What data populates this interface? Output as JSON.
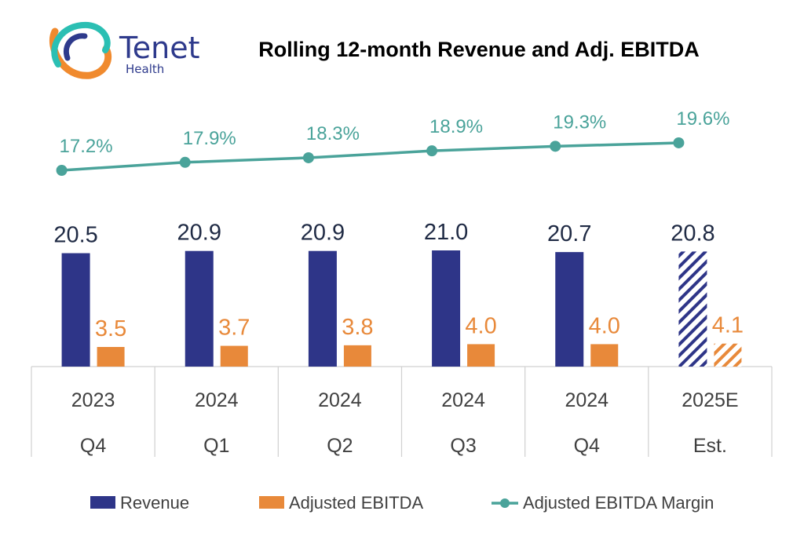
{
  "brand": {
    "name": "Tenet",
    "sub": "Health",
    "colors": {
      "teal": "#2bbfb3",
      "navy": "#2e3a8c",
      "orange": "#f08a2e"
    }
  },
  "chart_data": {
    "type": "bar",
    "title": "Rolling 12-month Revenue and Adj. EBITDA",
    "categories": [
      {
        "year": "2023",
        "period": "Q4"
      },
      {
        "year": "2024",
        "period": "Q1"
      },
      {
        "year": "2024",
        "period": "Q2"
      },
      {
        "year": "2024",
        "period": "Q3"
      },
      {
        "year": "2024",
        "period": "Q4"
      },
      {
        "year": "2025E",
        "period": "Est."
      }
    ],
    "series": [
      {
        "name": "Revenue",
        "values": [
          20.5,
          20.9,
          20.9,
          21.0,
          20.7,
          20.8
        ],
        "labels": [
          "20.5",
          "20.9",
          "20.9",
          "21.0",
          "20.7",
          "20.8"
        ],
        "color": "#2e3588"
      },
      {
        "name": "Adjusted EBITDA",
        "values": [
          3.5,
          3.7,
          3.8,
          4.0,
          4.0,
          4.1
        ],
        "labels": [
          "3.5",
          "3.7",
          "3.8",
          "4.0",
          "4.0",
          "4.1"
        ],
        "color": "#e8893a"
      },
      {
        "name": "Adjusted EBITDA Margin",
        "type": "line",
        "values": [
          17.2,
          17.9,
          18.3,
          18.9,
          19.3,
          19.6
        ],
        "labels": [
          "17.2%",
          "17.9%",
          "18.3%",
          "18.9%",
          "19.3%",
          "19.6%"
        ],
        "color": "#4aa39a"
      }
    ],
    "estimate_pattern": "hatched",
    "legend": [
      "Revenue",
      "Adjusted EBITDA",
      "Adjusted EBITDA Margin"
    ],
    "legend_position": "bottom",
    "text_colors": {
      "revenue_label": "#1f2a44",
      "ebitda_label": "#e8893a",
      "margin_label": "#4aa39a",
      "axis": "#404040"
    }
  }
}
